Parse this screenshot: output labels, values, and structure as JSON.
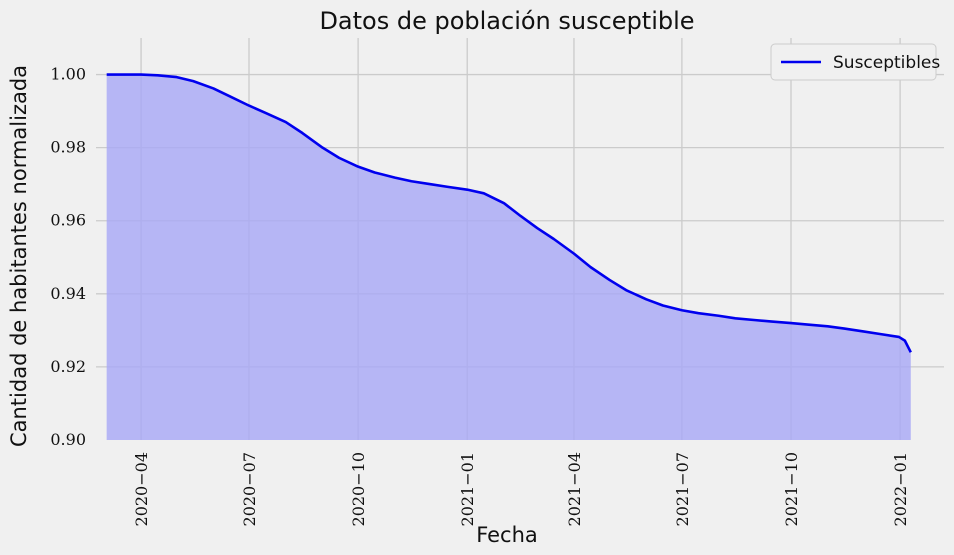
{
  "chart_data": {
    "type": "area",
    "title": "Datos de población susceptible",
    "xlabel": "Fecha",
    "ylabel": "Cantidad de habitantes normalizada",
    "ylim": [
      0.9,
      1.01
    ],
    "xlim": [
      "2020-02-23",
      "2022-02-07"
    ],
    "grid": true,
    "legend_position": "top-right",
    "x_ticks": [
      "2020-04-01",
      "2020-07-01",
      "2020-10-01",
      "2021-01-01",
      "2021-04-01",
      "2021-07-01",
      "2021-10-01",
      "2022-01-01"
    ],
    "x_tick_labels": [
      "2020−04",
      "2020−07",
      "2020−10",
      "2021−01",
      "2021−04",
      "2021−07",
      "2021−10",
      "2022−01"
    ],
    "y_ticks": [
      0.9,
      0.92,
      0.94,
      0.96,
      0.98,
      1.0
    ],
    "y_tick_labels": [
      "0.90",
      "0.92",
      "0.94",
      "0.96",
      "0.98",
      "1.00"
    ],
    "series": [
      {
        "name": "Susceptibles",
        "color": "#0000ee",
        "fill_color": "#a8a8f5",
        "x": [
          "2020-03-03",
          "2020-03-20",
          "2020-04-01",
          "2020-04-15",
          "2020-05-01",
          "2020-05-15",
          "2020-06-01",
          "2020-06-15",
          "2020-07-01",
          "2020-07-15",
          "2020-08-01",
          "2020-08-15",
          "2020-09-01",
          "2020-09-15",
          "2020-10-01",
          "2020-10-15",
          "2020-11-01",
          "2020-11-15",
          "2020-12-01",
          "2020-12-15",
          "2021-01-01",
          "2021-01-15",
          "2021-02-01",
          "2021-02-15",
          "2021-03-01",
          "2021-03-15",
          "2021-04-01",
          "2021-04-15",
          "2021-05-01",
          "2021-05-15",
          "2021-06-01",
          "2021-06-15",
          "2021-07-01",
          "2021-07-15",
          "2021-08-01",
          "2021-08-15",
          "2021-09-01",
          "2021-09-15",
          "2021-10-01",
          "2021-10-15",
          "2021-11-01",
          "2021-11-15",
          "2021-12-01",
          "2021-12-15",
          "2021-12-31",
          "2022-01-05",
          "2022-01-10"
        ],
        "values": [
          1.0,
          1.0,
          1.0,
          0.9998,
          0.9993,
          0.9982,
          0.9962,
          0.994,
          0.9915,
          0.9895,
          0.987,
          0.984,
          0.98,
          0.9772,
          0.9748,
          0.9732,
          0.9718,
          0.9708,
          0.97,
          0.9693,
          0.9685,
          0.9675,
          0.9648,
          0.9613,
          0.958,
          0.955,
          0.951,
          0.9473,
          0.9438,
          0.941,
          0.9385,
          0.9368,
          0.9355,
          0.9347,
          0.934,
          0.9333,
          0.9328,
          0.9324,
          0.932,
          0.9316,
          0.9311,
          0.9305,
          0.9297,
          0.929,
          0.9282,
          0.9272,
          0.924
        ]
      }
    ]
  }
}
